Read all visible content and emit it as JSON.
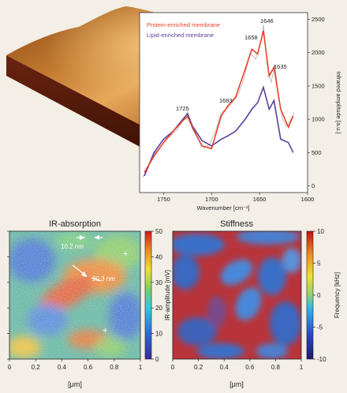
{
  "spectrum": {
    "legend": [
      "Protein-enriched membrane",
      "Lipid-enriched membrane"
    ],
    "xlabel": "Wavenumber [cm⁻¹]",
    "ylabel": "Infrared amplitude [a.u.]",
    "xticks": [
      "1750",
      "1700",
      "1650",
      "1600"
    ],
    "yticks": [
      "0",
      "500",
      "1000",
      "1500",
      "2000",
      "2500"
    ],
    "peaks": [
      "1725",
      "1683",
      "1658",
      "1646",
      "1635"
    ]
  },
  "ir_map": {
    "title": "IR-absorption",
    "colorbar_label": "IR-amplitude [mV]",
    "colorbar_ticks": [
      "0",
      "10",
      "20",
      "30",
      "40",
      "50"
    ],
    "annotations": [
      "10.2 nm",
      "20.3 nm"
    ],
    "xlabel": "[μm]",
    "xticks": [
      "0",
      "0.2",
      "0.4",
      "0.6",
      "0.8",
      "1"
    ],
    "yticks": [
      "0",
      "0.2",
      "0.4",
      "0.6",
      "0.8",
      "1"
    ]
  },
  "stiffness_map": {
    "title": "Stiffness",
    "colorbar_label": "Frequency [kHz]",
    "colorbar_ticks": [
      "10",
      "5",
      "0",
      "-5",
      "-10"
    ],
    "xlabel": "[μm]",
    "xticks": [
      "0",
      "0.2",
      "0.4",
      "0.6",
      "0.8",
      "1"
    ]
  },
  "chart_data": [
    {
      "type": "line",
      "xlabel": "Wavenumber [cm⁻¹]",
      "ylabel": "Infrared amplitude [a.u.]",
      "xlim": [
        1775,
        1600
      ],
      "ylim": [
        -100,
        2600
      ],
      "series": [
        {
          "name": "Protein-enriched membrane",
          "color": "#e8402a",
          "x": [
            1770,
            1760,
            1750,
            1740,
            1730,
            1725,
            1720,
            1710,
            1700,
            1690,
            1683,
            1675,
            1665,
            1658,
            1652,
            1646,
            1640,
            1635,
            1628,
            1620,
            1615
          ],
          "y": [
            200,
            450,
            650,
            820,
            980,
            1040,
            880,
            600,
            560,
            1050,
            1200,
            1330,
            1750,
            2050,
            1980,
            2330,
            1650,
            1780,
            1150,
            880,
            1050
          ]
        },
        {
          "name": "Lipid-enriched membrane",
          "color": "#5a3fa0",
          "x": [
            1770,
            1760,
            1750,
            1740,
            1730,
            1725,
            1720,
            1710,
            1700,
            1690,
            1683,
            1675,
            1665,
            1658,
            1652,
            1646,
            1640,
            1635,
            1628,
            1620,
            1615
          ],
          "y": [
            150,
            500,
            700,
            820,
            1000,
            1080,
            900,
            680,
            600,
            700,
            750,
            820,
            1000,
            1150,
            1250,
            1480,
            1150,
            1280,
            700,
            650,
            500
          ]
        },
        {
          "name": "",
          "color": "#aaaaaa",
          "x": [
            1772,
            1766,
            1760,
            1754,
            1748,
            1742,
            1736,
            1730,
            1725,
            1720,
            1714,
            1708,
            1702,
            1696,
            1690,
            1684,
            1678,
            1672,
            1666,
            1660,
            1654,
            1648,
            1646,
            1642,
            1638,
            1634,
            1630,
            1626,
            1622,
            1618,
            1614
          ],
          "y": [
            120,
            280,
            480,
            560,
            700,
            760,
            840,
            980,
            1120,
            850,
            700,
            560,
            620,
            820,
            1100,
            1160,
            1250,
            1380,
            1620,
            2000,
            1900,
            2200,
            2420,
            1800,
            1550,
            1820,
            1300,
            1000,
            900,
            980,
            1100
          ]
        }
      ],
      "annotations": [
        "1725",
        "1683",
        "1658",
        "1646",
        "1635"
      ]
    },
    {
      "type": "heatmap",
      "title": "IR-absorption",
      "xlabel": "[μm]",
      "xlim": [
        0,
        1
      ],
      "ylim": [
        0,
        1
      ],
      "colorbar": {
        "label": "IR-amplitude [mV]",
        "range": [
          0,
          50
        ]
      }
    },
    {
      "type": "heatmap",
      "title": "Stiffness",
      "xlabel": "[μm]",
      "xlim": [
        0,
        1
      ],
      "ylim": [
        0,
        1
      ],
      "colorbar": {
        "label": "Frequency [kHz]",
        "range": [
          -10,
          10
        ]
      }
    }
  ]
}
